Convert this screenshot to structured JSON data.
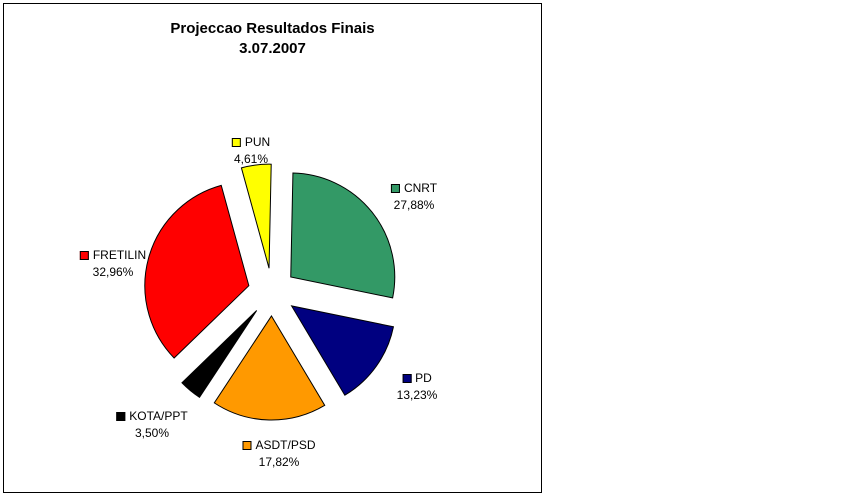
{
  "chart_data": {
    "type": "pie",
    "title": "Projeccao Resultados Finais",
    "subtitle": "3.07.2007",
    "slices": [
      {
        "name": "CNRT",
        "label": "27,88%",
        "value": 27.88,
        "color": "#339966"
      },
      {
        "name": "PD",
        "label": "13,23%",
        "value": 13.23,
        "color": "#000080"
      },
      {
        "name": "ASDT/PSD",
        "label": "17,82%",
        "value": 17.82,
        "color": "#ff9900"
      },
      {
        "name": "KOTA/PPT",
        "label": "3,50%",
        "value": 3.5,
        "color": "#000000"
      },
      {
        "name": "FRETILIN",
        "label": "32,96%",
        "value": 32.96,
        "color": "#ff0000"
      },
      {
        "name": "PUN",
        "label": "4,61%",
        "value": 4.61,
        "color": "#ffff00"
      }
    ],
    "legend": "none",
    "exploded": true
  }
}
